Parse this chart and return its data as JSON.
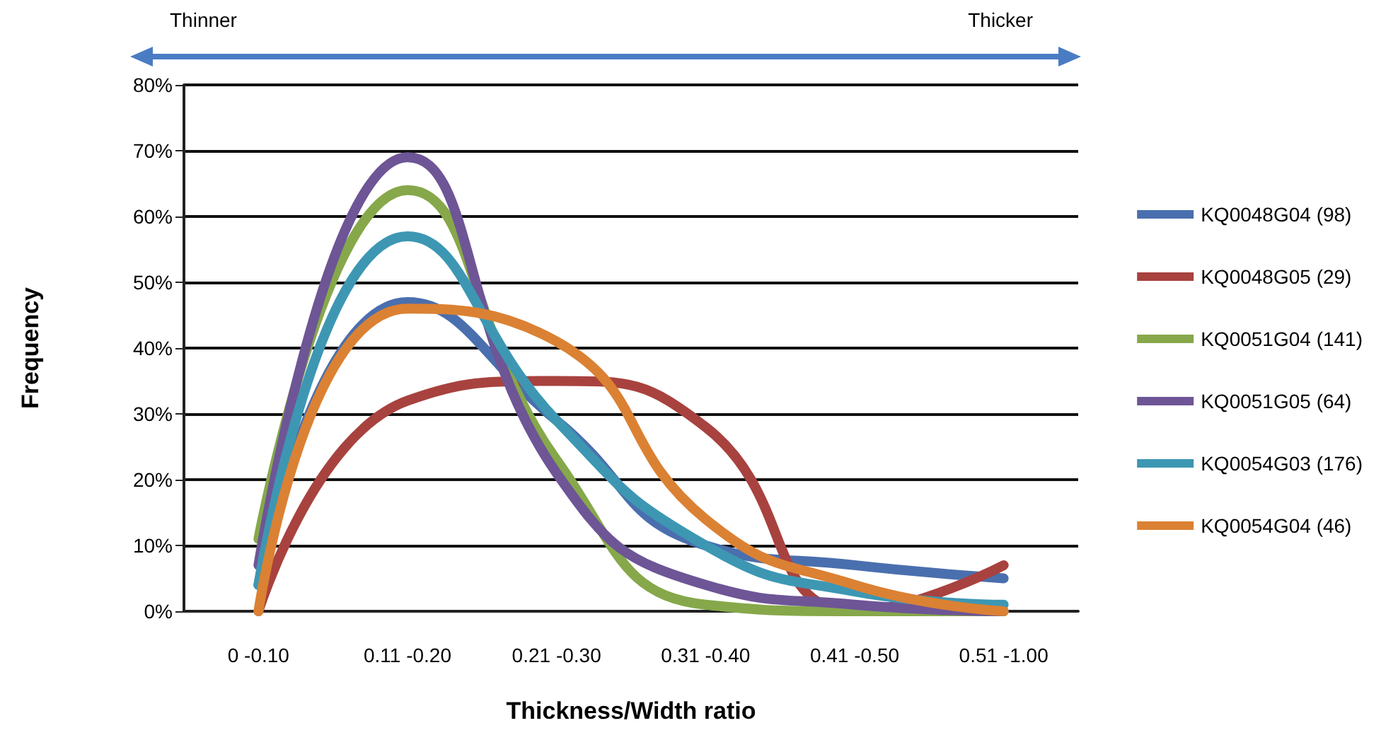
{
  "chart_data": {
    "type": "line",
    "xlabel": "Thickness/Width ratio",
    "ylabel": "Frequency",
    "annotations": [
      "Thinner",
      "Thicker"
    ],
    "categories": [
      "0 -0.10",
      "0.11 -0.20",
      "0.21 -0.30",
      "0.31 -0.40",
      "0.41 -0.50",
      "0.51 -1.00"
    ],
    "series": [
      {
        "name": "KQ0048G04 (98)",
        "color": "#4a6fae",
        "values": [
          4,
          47,
          29,
          10,
          7,
          5
        ]
      },
      {
        "name": "KQ0048G05 (29)",
        "color": "#a8423f",
        "values": [
          0,
          32,
          35,
          28,
          0,
          7
        ]
      },
      {
        "name": "KQ0051G04 (141)",
        "color": "#86a84a",
        "values": [
          11,
          64,
          23,
          1,
          0,
          0
        ]
      },
      {
        "name": "KQ0051G05 (64)",
        "color": "#6e5596",
        "values": [
          7,
          69,
          21,
          4,
          1,
          0
        ]
      },
      {
        "name": "KQ0054G03 (176)",
        "color": "#3d97b3",
        "values": [
          4,
          57,
          29,
          10,
          3,
          1
        ]
      },
      {
        "name": "KQ0054G04 (46)",
        "color": "#db8133",
        "values": [
          0,
          46,
          41,
          14,
          4,
          0
        ]
      }
    ],
    "ylim": [
      0,
      80
    ],
    "yticks": [
      {
        "value": 0,
        "label": "0%"
      },
      {
        "value": 10,
        "label": "10%"
      },
      {
        "value": 20,
        "label": "20%"
      },
      {
        "value": 30,
        "label": "30%"
      },
      {
        "value": 40,
        "label": "40%"
      },
      {
        "value": 50,
        "label": "50%"
      },
      {
        "value": 60,
        "label": "60%"
      },
      {
        "value": 70,
        "label": "70%"
      },
      {
        "value": 80,
        "label": "80%"
      }
    ],
    "grid": "y",
    "legend": "right",
    "marker": "none",
    "line_style": "solid"
  }
}
